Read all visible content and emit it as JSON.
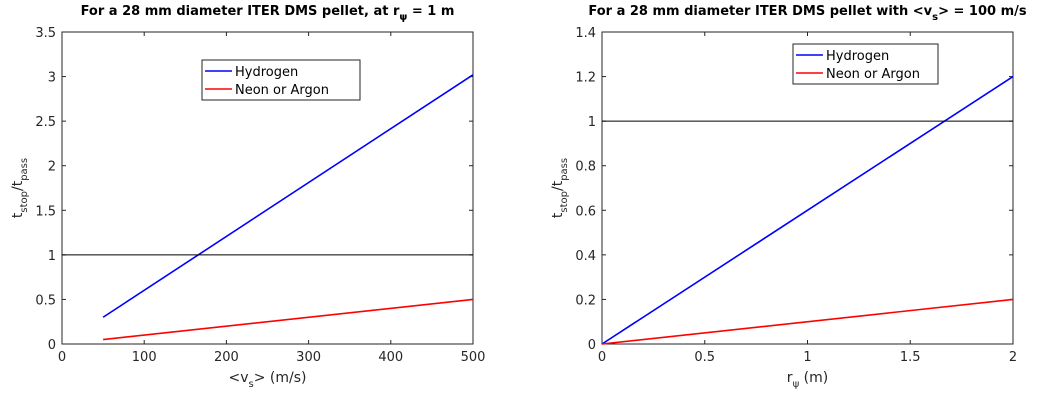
{
  "chart_data": [
    {
      "type": "line",
      "title": "For a 28 mm diameter ITER DMS pellet, at r",
      "title_sub": "ψ",
      "title_end": " = 1 m",
      "xlabel": "<v",
      "xlabel_sub": "s",
      "xlabel_end": "> (m/s)",
      "ylabel": "t",
      "ylabel_sub1": "stop",
      "ylabel_mid": "/t",
      "ylabel_sub2": "pass",
      "xlim": [
        0,
        500
      ],
      "ylim": [
        0,
        3.5
      ],
      "xticks": [
        0,
        100,
        200,
        300,
        400,
        500
      ],
      "xtick_labels": [
        "0",
        "100",
        "200",
        "300",
        "400",
        "500"
      ],
      "yticks": [
        0,
        0.5,
        1,
        1.5,
        2,
        2.5,
        3,
        3.5
      ],
      "ytick_labels": [
        "0",
        "0.5",
        "1",
        "1.5",
        "2",
        "2.5",
        "3",
        "3.5"
      ],
      "legend_position": "top-center",
      "series": [
        {
          "name": "Hydrogen",
          "color": "#0000ff",
          "x": [
            50,
            500
          ],
          "y": [
            0.3,
            3.02
          ]
        },
        {
          "name": "Neon or Argon",
          "color": "#ff0000",
          "x": [
            50,
            500
          ],
          "y": [
            0.05,
            0.5
          ]
        },
        {
          "color": "#000000",
          "x": [
            0,
            500
          ],
          "y": [
            1,
            1
          ]
        }
      ]
    },
    {
      "type": "line",
      "title": "For a 28 mm diameter ITER DMS pellet with <v",
      "title_sub": "s",
      "title_end": "> = 100 m/s",
      "xlabel": "r",
      "xlabel_sub": "ψ",
      "xlabel_end": " (m)",
      "ylabel": "t",
      "ylabel_sub1": "stop",
      "ylabel_mid": "/t",
      "ylabel_sub2": "pass",
      "xlim": [
        0,
        2
      ],
      "ylim": [
        0,
        1.4
      ],
      "xticks": [
        0,
        0.5,
        1,
        1.5,
        2
      ],
      "xtick_labels": [
        "0",
        "0.5",
        "1",
        "1.5",
        "2"
      ],
      "yticks": [
        0,
        0.2,
        0.4,
        0.6,
        0.8,
        1,
        1.2,
        1.4
      ],
      "ytick_labels": [
        "0",
        "0.2",
        "0.4",
        "0.6",
        "0.8",
        "1",
        "1.2",
        "1.4"
      ],
      "legend_position": "top-center",
      "series": [
        {
          "name": "Hydrogen",
          "color": "#0000ff",
          "x": [
            0,
            2
          ],
          "y": [
            0,
            1.2
          ]
        },
        {
          "name": "Neon or Argon",
          "color": "#ff0000",
          "x": [
            0,
            2
          ],
          "y": [
            0,
            0.2
          ]
        },
        {
          "color": "#000000",
          "x": [
            0,
            2
          ],
          "y": [
            1,
            1
          ]
        }
      ]
    }
  ]
}
